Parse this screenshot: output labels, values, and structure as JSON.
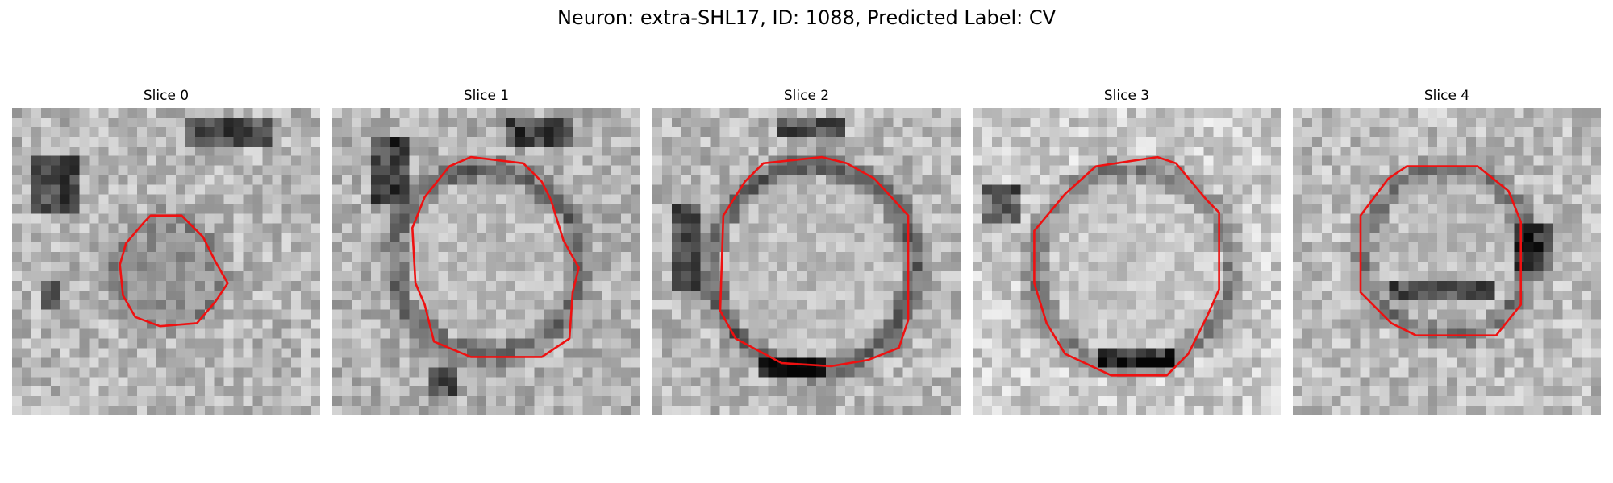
{
  "figure": {
    "title": "Neuron: extra-SHL17, ID: 1088, Predicted Label: CV",
    "outline_color": "#ee1111"
  },
  "panels": [
    {
      "title": "Slice 0"
    },
    {
      "title": "Slice 1"
    },
    {
      "title": "Slice 2"
    },
    {
      "title": "Slice 3"
    },
    {
      "title": "Slice 4"
    }
  ]
}
